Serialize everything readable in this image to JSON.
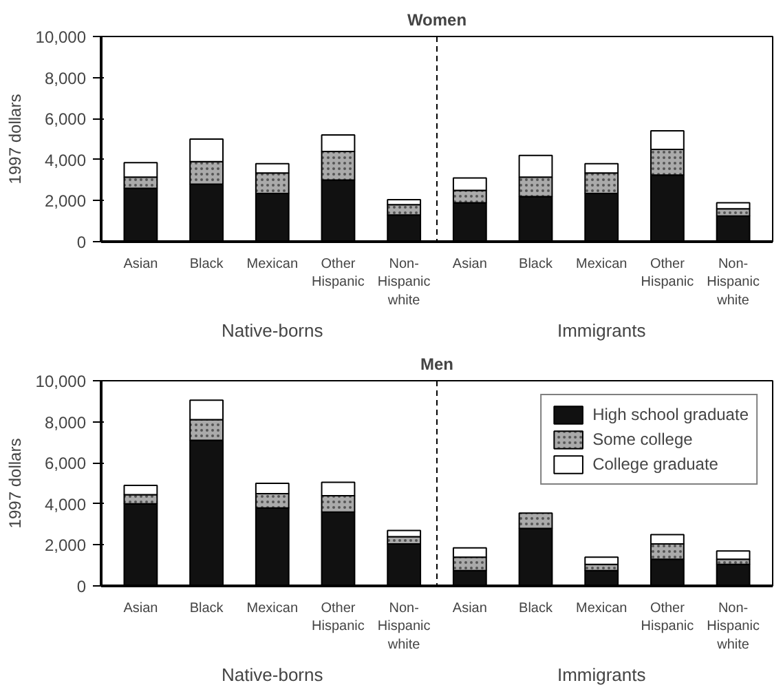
{
  "chart_data": [
    {
      "type": "bar",
      "title": "Women",
      "stacked": true,
      "ylabel": "1997 dollars",
      "categories": [
        "Asian",
        "Black",
        "Mexican",
        "Other\nHispanic",
        "Non-\nHispanic\nwhite",
        "Asian",
        "Black",
        "Mexican",
        "Other\nHispanic",
        "Non-\nHispanic\nwhite"
      ],
      "series": [
        {
          "color": "#111111",
          "values": [
            2600,
            2800,
            2350,
            3000,
            1300,
            1900,
            2200,
            2350,
            3250,
            1250
          ]
        },
        {
          "color": "#aaaaaa",
          "values": [
            550,
            1100,
            1000,
            1400,
            500,
            600,
            950,
            1000,
            1250,
            350
          ]
        },
        {
          "color": "#ffffff",
          "values": [
            700,
            1100,
            450,
            800,
            250,
            600,
            1050,
            450,
            900,
            300
          ]
        }
      ],
      "ylim": [
        0,
        10000
      ],
      "yticks": [
        {
          "value": 0,
          "label": "0"
        },
        {
          "value": 2000,
          "label": "2,000"
        },
        {
          "value": 4000,
          "label": "4,000"
        },
        {
          "value": 6000,
          "label": "6,000"
        },
        {
          "value": 8000,
          "label": "8,000"
        },
        {
          "value": 10000,
          "label": "10,000"
        }
      ],
      "annotations": [
        "Native-borns",
        "Immigrants"
      ],
      "grid": false,
      "legend": false
    },
    {
      "type": "bar",
      "title": "Men",
      "stacked": true,
      "ylabel": "1997 dollars",
      "categories": [
        "Asian",
        "Black",
        "Mexican",
        "Other\nHispanic",
        "Non-\nHispanic\nwhite",
        "Asian",
        "Black",
        "Mexican",
        "Other\nHispanic",
        "Non-\nHispanic\nwhite"
      ],
      "series": [
        {
          "name": "High school graduate",
          "color": "#111111",
          "values": [
            4000,
            7100,
            3800,
            3600,
            2050,
            750,
            2800,
            750,
            1300,
            1050
          ]
        },
        {
          "name": "Some college",
          "color": "#aaaaaa",
          "values": [
            450,
            1000,
            700,
            800,
            350,
            650,
            750,
            300,
            750,
            250
          ]
        },
        {
          "name": "College graduate",
          "color": "#ffffff",
          "values": [
            450,
            950,
            500,
            650,
            300,
            450,
            null,
            350,
            450,
            400
          ]
        }
      ],
      "ylim": [
        0,
        10000
      ],
      "yticks": [
        {
          "value": 0,
          "label": "0"
        },
        {
          "value": 2000,
          "label": "2,000"
        },
        {
          "value": 4000,
          "label": "4,000"
        },
        {
          "value": 6000,
          "label": "6,000"
        },
        {
          "value": 8000,
          "label": "8,000"
        },
        {
          "value": 10000,
          "label": "10,000"
        }
      ],
      "annotations": [
        "Native-borns",
        "Immigrants"
      ],
      "grid": false,
      "legend": "top right"
    }
  ]
}
